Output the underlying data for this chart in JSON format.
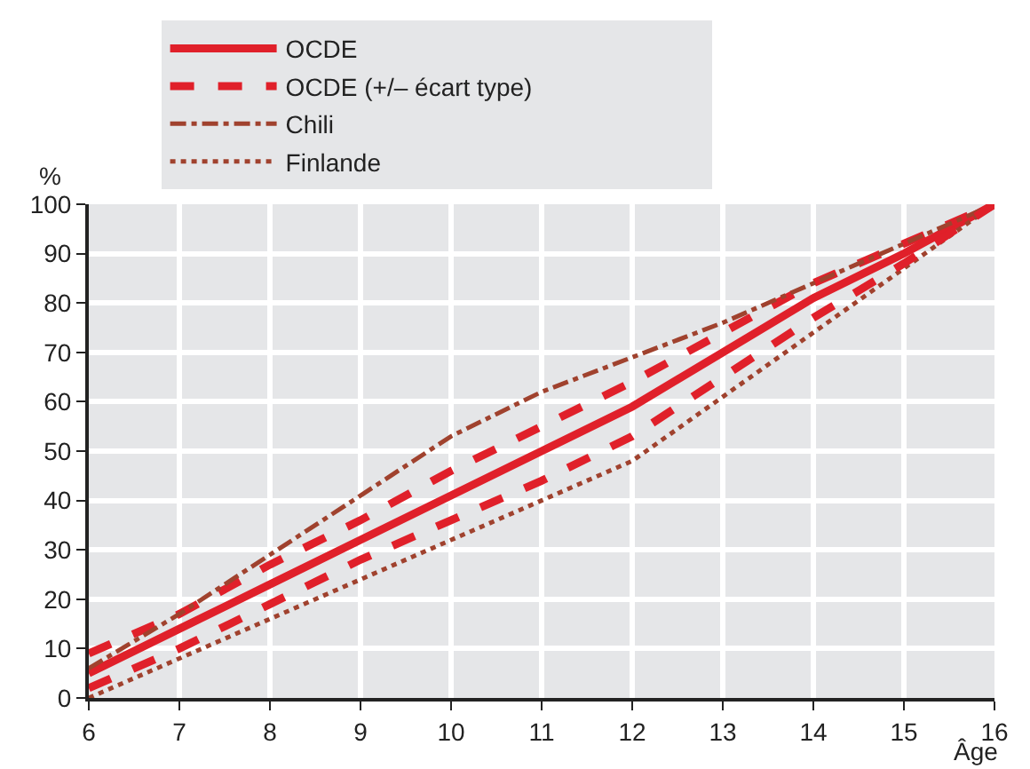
{
  "chart_data": {
    "type": "line",
    "xlabel": "Âge",
    "ylabel": "%",
    "x": [
      6,
      7,
      8,
      9,
      10,
      11,
      12,
      13,
      14,
      15,
      16
    ],
    "series": [
      {
        "name": "OCDE",
        "color": "#e0202a",
        "line_style": "solid",
        "values": [
          5,
          14,
          23,
          32,
          41,
          50,
          59,
          70,
          81,
          90,
          100
        ]
      },
      {
        "name": "OCDE (+/– écart type)",
        "color": "#e0202a",
        "line_style": "dashed",
        "values": [
          9,
          17,
          27,
          36,
          46,
          55,
          64,
          74,
          84,
          92,
          100
        ]
      },
      {
        "name": "Chili",
        "color": "#a0422e",
        "line_style": "dashdot",
        "values": [
          6,
          17,
          29,
          41,
          53,
          62,
          69,
          76,
          84,
          92,
          100
        ]
      },
      {
        "name": "Finlande",
        "color": "#a0422e",
        "line_style": "dotted",
        "values": [
          0,
          8,
          16,
          24,
          32,
          40,
          48,
          61,
          74,
          87,
          100
        ]
      },
      {
        "color": "#e0202a",
        "line_style": "dashed",
        "values": [
          2,
          10,
          19,
          28,
          36,
          44,
          53,
          65,
          77,
          88,
          100
        ]
      }
    ],
    "xlim": [
      6,
      16
    ],
    "xticks": [
      6,
      7,
      8,
      9,
      10,
      11,
      12,
      13,
      14,
      15,
      16
    ],
    "ylim": [
      0,
      100
    ],
    "yticks": [
      0,
      10,
      20,
      30,
      40,
      50,
      60,
      70,
      80,
      90,
      100
    ],
    "grid": true,
    "legend": "top",
    "marker": "none"
  }
}
